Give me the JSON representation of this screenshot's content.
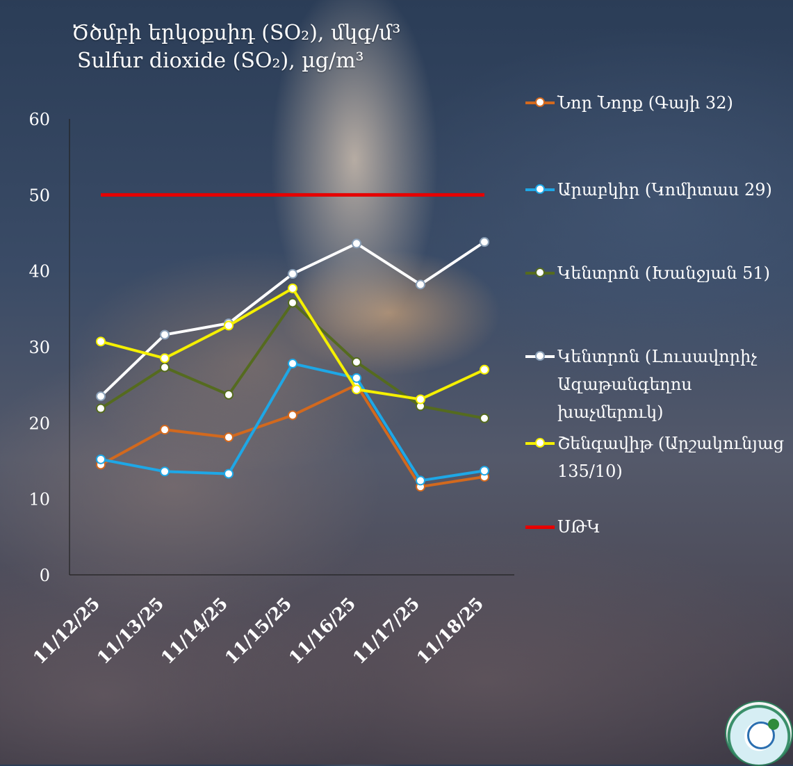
{
  "title": {
    "line1": "Ծծմբի երկօքսիդ (SO₂), մկգ/մ³",
    "line2": "Sulfur dioxide (SO₂), µg/m³"
  },
  "chart_data": {
    "type": "line",
    "categories": [
      "11/12/25",
      "11/13/25",
      "11/14/25",
      "11/15/25",
      "11/16/25",
      "11/17/25",
      "11/18/25"
    ],
    "ylim": [
      0,
      60
    ],
    "yticks": [
      0,
      10,
      20,
      30,
      40,
      50,
      60
    ],
    "grid": false,
    "legend_position": "right",
    "series": [
      {
        "name": "Նոր Նորք (Գայի 32)",
        "color": "#d2691e",
        "values": [
          14.5,
          19.1,
          18.1,
          21.0,
          25.0,
          11.6,
          12.9
        ]
      },
      {
        "name": "Արաբկիր (Կոմիտաս 29)",
        "color": "#1ea7e6",
        "values": [
          15.2,
          13.6,
          13.3,
          27.8,
          25.9,
          12.4,
          13.7
        ]
      },
      {
        "name": "Կենտրոն (Խանջյան 51)",
        "color": "#556b1f",
        "values": [
          21.9,
          27.3,
          23.7,
          35.8,
          28.0,
          22.2,
          20.6
        ]
      },
      {
        "name": "Կենտրոն (Լուսավորիչ Ազաթանգեղոս խաչմերուկ)",
        "color": "#ffffff",
        "values": [
          23.5,
          31.6,
          33.1,
          39.6,
          43.6,
          38.2,
          43.8
        ]
      },
      {
        "name": "Շենգավիթ (Արշակունյաց 135/10)",
        "color": "#f5f000",
        "values": [
          30.7,
          28.5,
          32.8,
          37.7,
          24.4,
          23.1,
          27.0
        ]
      },
      {
        "name": "ՍԹԿ",
        "color": "#e60000",
        "values": [
          50,
          50,
          50,
          50,
          50,
          50,
          50
        ],
        "markers": false
      }
    ]
  },
  "legend": {
    "items": [
      {
        "label": "Նոր Նորք (Գայի 32)",
        "color": "#d2691e"
      },
      {
        "label": "Արաբկիր (Կոմիտաս 29)",
        "color": "#1ea7e6"
      },
      {
        "label": "Կենտրոն (Խանջյան 51)",
        "color": "#556b1f"
      },
      {
        "label": "Կենտրոն (Լուսավորիչ Ազաթանգեղոս խաչմերուկ)",
        "color": "#ffffff"
      },
      {
        "label": "Շենգավիթ (Արշակունյաց 135/10)",
        "color": "#f5f000"
      },
      {
        "label": "ՍԹԿ",
        "color": "#e60000"
      }
    ]
  }
}
